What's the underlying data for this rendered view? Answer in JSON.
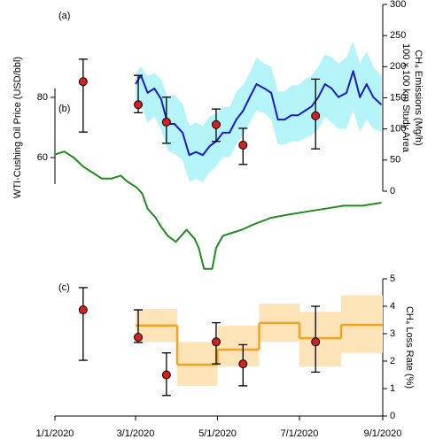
{
  "chart_data": [
    {
      "type": "line",
      "label": "(a)",
      "y_title": [
        "100 x 100 km Study Area",
        "CH₄ Emissions (Mg/h)"
      ],
      "xlim": [
        "2020-01-01",
        "2020-09-01"
      ],
      "ylim": [
        0,
        300
      ],
      "yticks": [
        0,
        50,
        100,
        150,
        200,
        250,
        300
      ],
      "axis_side": "right",
      "series": [
        {
          "kind": "band",
          "color": "#b5f4f8",
          "x": [
            "2020-03-01",
            "2020-03-05",
            "2020-03-10",
            "2020-03-15",
            "2020-03-20",
            "2020-03-25",
            "2020-03-30",
            "2020-04-05",
            "2020-04-10",
            "2020-04-15",
            "2020-04-20",
            "2020-04-25",
            "2020-04-30",
            "2020-05-05",
            "2020-05-10",
            "2020-05-15",
            "2020-05-20",
            "2020-05-25",
            "2020-05-30",
            "2020-06-05",
            "2020-06-10",
            "2020-06-15",
            "2020-06-20",
            "2020-06-25",
            "2020-06-30",
            "2020-07-05",
            "2020-07-10",
            "2020-07-15",
            "2020-07-20",
            "2020-07-25",
            "2020-07-30",
            "2020-08-05",
            "2020-08-10",
            "2020-08-15",
            "2020-08-20",
            "2020-08-25",
            "2020-08-31"
          ],
          "lower": [
            130,
            140,
            110,
            120,
            100,
            65,
            60,
            50,
            15,
            20,
            15,
            30,
            40,
            55,
            55,
            75,
            90,
            110,
            130,
            125,
            115,
            75,
            75,
            80,
            80,
            85,
            90,
            100,
            120,
            110,
            100,
            100,
            130,
            95,
            115,
            100,
            95
          ],
          "upper": [
            190,
            200,
            185,
            190,
            180,
            150,
            155,
            140,
            105,
            110,
            105,
            120,
            125,
            135,
            135,
            160,
            170,
            190,
            215,
            205,
            200,
            160,
            160,
            170,
            170,
            180,
            185,
            200,
            220,
            215,
            205,
            215,
            240,
            205,
            225,
            200,
            185
          ]
        },
        {
          "kind": "line",
          "color": "#1a1acc",
          "x": [
            "2020-03-01",
            "2020-03-05",
            "2020-03-10",
            "2020-03-15",
            "2020-03-20",
            "2020-03-25",
            "2020-03-30",
            "2020-04-05",
            "2020-04-10",
            "2020-04-15",
            "2020-04-20",
            "2020-04-25",
            "2020-04-30",
            "2020-05-05",
            "2020-05-10",
            "2020-05-15",
            "2020-05-20",
            "2020-05-25",
            "2020-05-30",
            "2020-06-05",
            "2020-06-10",
            "2020-06-15",
            "2020-06-20",
            "2020-06-25",
            "2020-06-30",
            "2020-07-05",
            "2020-07-10",
            "2020-07-15",
            "2020-07-20",
            "2020-07-25",
            "2020-07-30",
            "2020-08-05",
            "2020-08-10",
            "2020-08-15",
            "2020-08-20",
            "2020-08-25",
            "2020-08-31"
          ],
          "values": [
            172,
            186,
            158,
            165,
            148,
            108,
            108,
            94,
            58,
            63,
            58,
            72,
            80,
            94,
            94,
            115,
            129,
            151,
            172,
            165,
            158,
            115,
            115,
            122,
            122,
            129,
            136,
            151,
            172,
            165,
            151,
            158,
            193,
            151,
            172,
            151,
            139
          ]
        },
        {
          "kind": "points",
          "color": "#d42020",
          "x": [
            "2020-01-22",
            "2020-03-03",
            "2020-03-24",
            "2020-04-30",
            "2020-05-20",
            "2020-07-13"
          ],
          "values": [
            176,
            139,
            111,
            107,
            74,
            121
          ],
          "lower": [
            95,
            126,
            77,
            80,
            43,
            68
          ],
          "upper": [
            212,
            186,
            151,
            132,
            101,
            180
          ]
        }
      ]
    },
    {
      "type": "line",
      "label": "(b)",
      "y_title": [
        "WTI-Cushing Oil Price (USD/bbl)"
      ],
      "xlim": [
        "2020-01-01",
        "2020-09-01"
      ],
      "ylim": [
        0,
        100
      ],
      "yticks": [
        60,
        80
      ],
      "axis_side": "left",
      "series": [
        {
          "kind": "line",
          "color": "#1e8c1e",
          "x": [
            "2020-01-01",
            "2020-01-08",
            "2020-01-15",
            "2020-01-22",
            "2020-01-29",
            "2020-02-05",
            "2020-02-12",
            "2020-02-19",
            "2020-02-24",
            "2020-03-02",
            "2020-03-06",
            "2020-03-10",
            "2020-03-16",
            "2020-03-20",
            "2020-03-25",
            "2020-03-31",
            "2020-04-08",
            "2020-04-14",
            "2020-04-17",
            "2020-04-21",
            "2020-04-27",
            "2020-04-30",
            "2020-05-05",
            "2020-05-12",
            "2020-05-19",
            "2020-05-29",
            "2020-06-10",
            "2020-06-22",
            "2020-07-06",
            "2020-07-20",
            "2020-08-03",
            "2020-08-17",
            "2020-08-31"
          ],
          "values": [
            61,
            62,
            60,
            57,
            55,
            53,
            53,
            54,
            52,
            50,
            48,
            43,
            40,
            37,
            34,
            32,
            36,
            33,
            30,
            23,
            23,
            30,
            34,
            35,
            36,
            38,
            40,
            41,
            42,
            43,
            44,
            44,
            45
          ]
        }
      ]
    },
    {
      "type": "step",
      "label": "(c)",
      "y_title": [
        "CH₄ Loss Rate (%)"
      ],
      "xlim": [
        "2020-01-01",
        "2020-09-01"
      ],
      "ylim": [
        0,
        5
      ],
      "yticks": [
        0,
        1,
        2,
        3,
        4,
        5
      ],
      "axis_side": "right",
      "xticks": [
        {
          "value": "2020-01-01",
          "label": "1/1/2020"
        },
        {
          "value": "2020-03-01",
          "label": "3/1/2020"
        },
        {
          "value": "2020-05-01",
          "label": "5/1/2020"
        },
        {
          "value": "2020-07-01",
          "label": "7/1/2020"
        },
        {
          "value": "2020-09-01",
          "label": "9/1/2020"
        }
      ],
      "series": [
        {
          "kind": "steps",
          "color": "#f5a31e",
          "band_color": "#fde3b8",
          "bins": [
            "2020-03-01",
            "2020-04-01",
            "2020-05-01",
            "2020-06-01",
            "2020-07-01",
            "2020-08-01",
            "2020-09-01"
          ],
          "values": [
            3.3,
            1.87,
            2.42,
            3.39,
            2.84,
            3.32
          ],
          "lower": [
            2.7,
            1.1,
            1.8,
            2.7,
            1.8,
            2.3
          ],
          "upper": [
            3.9,
            2.7,
            3.3,
            4.1,
            3.8,
            4.4
          ]
        },
        {
          "kind": "points",
          "color": "#d42020",
          "x": [
            "2020-01-22",
            "2020-03-03",
            "2020-03-24",
            "2020-04-30",
            "2020-05-20",
            "2020-07-13"
          ],
          "values": [
            3.87,
            2.87,
            1.5,
            2.7,
            1.9,
            2.7
          ],
          "lower": [
            2.03,
            2.68,
            0.75,
            1.9,
            1.1,
            1.6
          ],
          "upper": [
            4.68,
            3.87,
            2.3,
            3.4,
            2.6,
            4.0
          ]
        }
      ]
    }
  ]
}
